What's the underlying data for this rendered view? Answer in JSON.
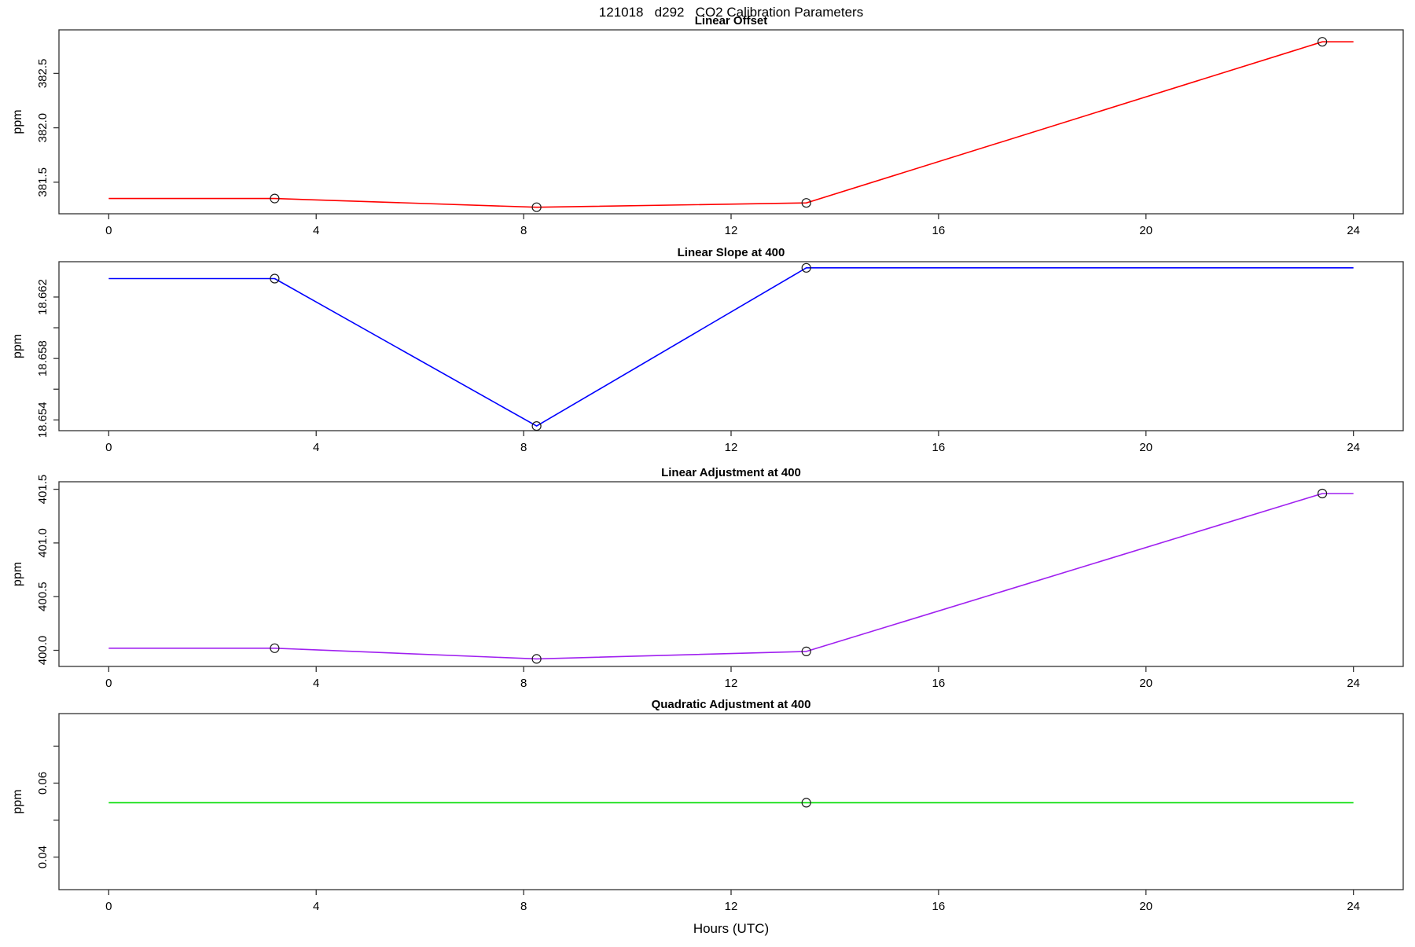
{
  "figure_title": "121018   d292   CO2 Calibration Parameters",
  "xlabel": "Hours (UTC)",
  "x_axis": {
    "ticks": [
      0,
      4,
      8,
      12,
      16,
      20,
      24
    ],
    "xlim": [
      -0.96,
      24.96
    ]
  },
  "chart_data": [
    {
      "type": "line",
      "title": "Linear Offset",
      "ylabel": "ppm",
      "color": "#FF0000",
      "ylim": [
        381.21,
        382.9
      ],
      "yticks": [
        {
          "v": 381.5,
          "label": "381.5"
        },
        {
          "v": 382.0,
          "label": "382.0"
        },
        {
          "v": 382.5,
          "label": "382.5"
        }
      ],
      "line": {
        "x": [
          0,
          3.2,
          8.25,
          13.45,
          23.4,
          24
        ],
        "y": [
          381.35,
          381.35,
          381.27,
          381.31,
          382.79,
          382.79
        ]
      },
      "points": {
        "x": [
          3.2,
          8.25,
          13.45,
          23.4
        ],
        "y": [
          381.35,
          381.27,
          381.31,
          382.79
        ]
      }
    },
    {
      "type": "line",
      "title": "Linear Slope at 400",
      "ylabel": "ppm",
      "color": "#0000FF",
      "ylim": [
        18.6533,
        18.6643
      ],
      "yticks": [
        {
          "v": 18.654,
          "label": "18.654"
        },
        {
          "v": 18.656,
          "label": ""
        },
        {
          "v": 18.658,
          "label": "18.658"
        },
        {
          "v": 18.66,
          "label": ""
        },
        {
          "v": 18.662,
          "label": "18.662"
        }
      ],
      "line": {
        "x": [
          0,
          3.2,
          8.25,
          13.45,
          24
        ],
        "y": [
          18.6632,
          18.6632,
          18.6536,
          18.6639,
          18.6639
        ]
      },
      "points": {
        "x": [
          3.2,
          8.25,
          13.45
        ],
        "y": [
          18.6632,
          18.6536,
          18.6639
        ]
      }
    },
    {
      "type": "line",
      "title": "Linear Adjustment at 400",
      "ylabel": "ppm",
      "color": "#A020F0",
      "ylim": [
        399.85,
        401.57
      ],
      "yticks": [
        {
          "v": 400.0,
          "label": "400.0"
        },
        {
          "v": 400.5,
          "label": "400.5"
        },
        {
          "v": 401.0,
          "label": "401.0"
        },
        {
          "v": 401.5,
          "label": "401.5"
        }
      ],
      "line": {
        "x": [
          0,
          3.2,
          8.25,
          13.45,
          23.4,
          24
        ],
        "y": [
          400.02,
          400.02,
          399.92,
          399.99,
          401.46,
          401.46
        ]
      },
      "points": {
        "x": [
          3.2,
          8.25,
          13.45,
          23.4
        ],
        "y": [
          400.02,
          399.92,
          399.99,
          401.46
        ]
      }
    },
    {
      "type": "line",
      "title": "Quadratic Adjustment at 400",
      "ylabel": "ppm",
      "color": "#00DD00",
      "ylim": [
        0.0312,
        0.0788
      ],
      "yticks": [
        {
          "v": 0.04,
          "label": "0.04"
        },
        {
          "v": 0.05,
          "label": ""
        },
        {
          "v": 0.06,
          "label": "0.06"
        },
        {
          "v": 0.07,
          "label": ""
        }
      ],
      "line": {
        "x": [
          0,
          24
        ],
        "y": [
          0.0547,
          0.0547
        ]
      },
      "points": {
        "x": [
          13.45
        ],
        "y": [
          0.0547
        ]
      }
    }
  ]
}
